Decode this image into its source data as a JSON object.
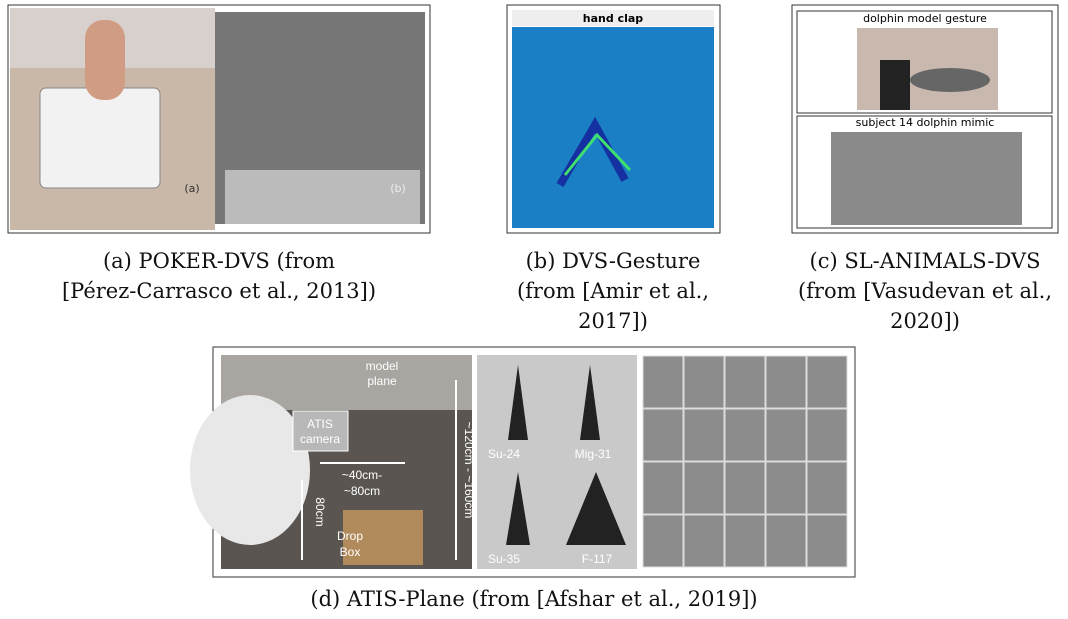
{
  "figure": {
    "panels": [
      {
        "caption": [
          "(a) POKER-DVS (from",
          "[Pérez-Carrasco et al., 2013])"
        ],
        "labels": [
          "(a)",
          "(b)"
        ]
      },
      {
        "caption": [
          "(b) DVS-Gesture",
          "(from [Amir et al.,",
          "2017])"
        ],
        "title": "hand clap"
      },
      {
        "caption": [
          "(c) SL-ANIMALS-DVS",
          "(from [Vasudevan et al.,",
          "2020])"
        ],
        "top_label": "dolphin model gesture",
        "bottom_label": "subject 14 dolphin mimic"
      },
      {
        "caption": [
          "(d) ATIS-Plane (from [Afshar et al., 2019])"
        ],
        "scene_labels": [
          "model",
          "plane",
          "ATIS",
          "camera",
          "~40cm-",
          "~80cm",
          "80cm",
          "Drop",
          "Box",
          "~120cm - ~160cm"
        ],
        "planes": [
          "Su-24",
          "Mig-31",
          "Su-35",
          "F-117"
        ]
      }
    ]
  }
}
